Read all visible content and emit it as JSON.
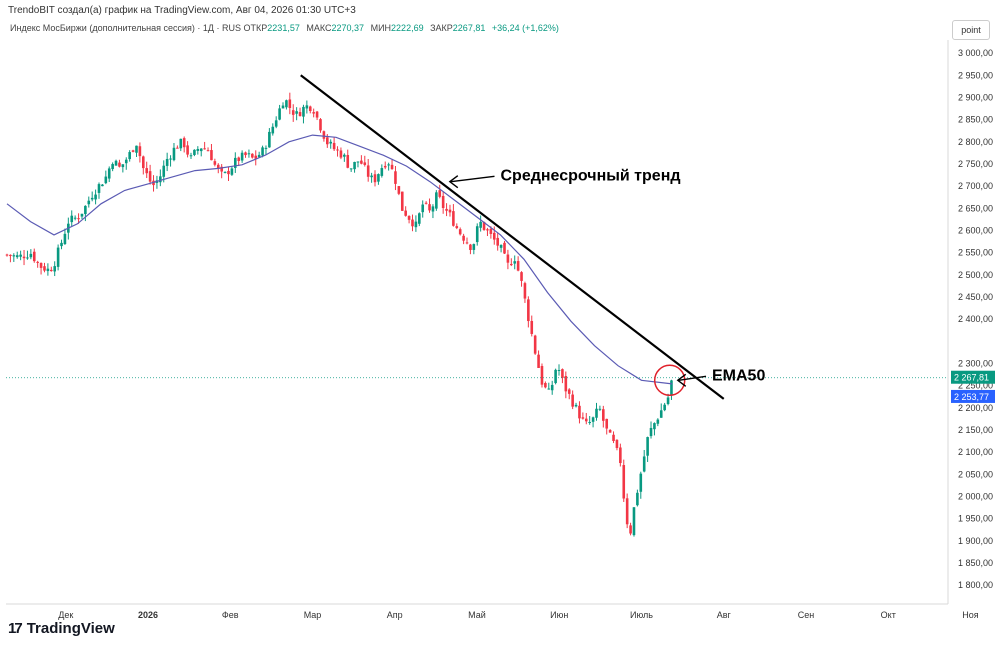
{
  "credit": "TrendoBIT создал(а) график на TradingView.com, Авг 04, 2026 01:30 UTC+3",
  "legend": {
    "symbol": "Индекс МосБиржи (дополнительная сессия) · 1Д · RUS",
    "open_label": "ОТКР",
    "open": "2231,57",
    "high_label": "МАКС",
    "high": "2270,37",
    "low_label": "МИН",
    "low": "2222,69",
    "close_label": "ЗАКР",
    "close": "2267,81",
    "change": "+36,24 (+1,62%)"
  },
  "scale_button": "point",
  "logo_text": "TradingView",
  "colors": {
    "up": "#089981",
    "down": "#f23645",
    "ema": "#5b5bb4",
    "trend": "#000000",
    "last_price": "#089981",
    "ema_badge": "#2962ff",
    "circle": "#e0202a"
  },
  "chart_data": {
    "type": "candlestick",
    "ylim": [
      1780,
      3025
    ],
    "y_ticks": [
      "3 000,00",
      "2 950,00",
      "2 900,00",
      "2 850,00",
      "2 800,00",
      "2 750,00",
      "2 700,00",
      "2 650,00",
      "2 600,00",
      "2 550,00",
      "2 500,00",
      "2 450,00",
      "2 400,00",
      "2 300,00",
      "2 250,00",
      "2 200,00",
      "2 150,00",
      "2 100,00",
      "2 050,00",
      "2 000,00",
      "1 950,00",
      "1 900,00",
      "1 850,00",
      "1 800,00"
    ],
    "y_tick_values": [
      3000,
      2950,
      2900,
      2850,
      2800,
      2750,
      2700,
      2650,
      2600,
      2550,
      2500,
      2450,
      2400,
      2300,
      2250,
      2200,
      2150,
      2100,
      2050,
      2000,
      1950,
      1900,
      1850,
      1800
    ],
    "x_labels": [
      "ноя",
      "Дек",
      "2026",
      "Фев",
      "Мар",
      "Апр",
      "Май",
      "Июн",
      "Июль",
      "Авг",
      "Сен",
      "Окт",
      "Ноя"
    ],
    "x_label_days": [
      -14,
      25,
      60,
      95,
      130,
      165,
      200,
      235,
      270,
      305,
      340,
      375,
      410
    ],
    "last_price": {
      "label": "2 267,81",
      "value": 2267.81
    },
    "ema_value": {
      "label": "2 253,77",
      "value": 2253.77
    },
    "anchors": [
      [
        0,
        2545
      ],
      [
        5,
        2540
      ],
      [
        10,
        2550
      ],
      [
        14,
        2520
      ],
      [
        18,
        2510
      ],
      [
        20,
        2525
      ],
      [
        23,
        2570
      ],
      [
        26,
        2620
      ],
      [
        30,
        2630
      ],
      [
        33,
        2650
      ],
      [
        36,
        2680
      ],
      [
        39,
        2700
      ],
      [
        42,
        2720
      ],
      [
        45,
        2760
      ],
      [
        48,
        2740
      ],
      [
        52,
        2770
      ],
      [
        55,
        2800
      ],
      [
        58,
        2740
      ],
      [
        62,
        2700
      ],
      [
        65,
        2720
      ],
      [
        68,
        2760
      ],
      [
        72,
        2790
      ],
      [
        75,
        2800
      ],
      [
        78,
        2760
      ],
      [
        82,
        2790
      ],
      [
        86,
        2780
      ],
      [
        89,
        2740
      ],
      [
        92,
        2720
      ],
      [
        95,
        2740
      ],
      [
        98,
        2760
      ],
      [
        102,
        2770
      ],
      [
        105,
        2760
      ],
      [
        109,
        2780
      ],
      [
        112,
        2820
      ],
      [
        115,
        2860
      ],
      [
        118,
        2900
      ],
      [
        120,
        2880
      ],
      [
        123,
        2860
      ],
      [
        127,
        2880
      ],
      [
        130,
        2880
      ],
      [
        133,
        2840
      ],
      [
        136,
        2800
      ],
      [
        140,
        2780
      ],
      [
        143,
        2770
      ],
      [
        146,
        2740
      ],
      [
        150,
        2760
      ],
      [
        153,
        2730
      ],
      [
        156,
        2710
      ],
      [
        159,
        2740
      ],
      [
        162,
        2760
      ],
      [
        165,
        2720
      ],
      [
        168,
        2650
      ],
      [
        171,
        2630
      ],
      [
        174,
        2610
      ],
      [
        177,
        2660
      ],
      [
        180,
        2640
      ],
      [
        183,
        2680
      ],
      [
        186,
        2650
      ],
      [
        189,
        2630
      ],
      [
        192,
        2600
      ],
      [
        195,
        2580
      ],
      [
        198,
        2560
      ],
      [
        201,
        2620
      ],
      [
        204,
        2600
      ],
      [
        207,
        2580
      ],
      [
        210,
        2560
      ],
      [
        213,
        2520
      ],
      [
        216,
        2540
      ],
      [
        219,
        2480
      ],
      [
        222,
        2400
      ],
      [
        225,
        2320
      ],
      [
        228,
        2250
      ],
      [
        231,
        2230
      ],
      [
        234,
        2300
      ],
      [
        237,
        2250
      ],
      [
        240,
        2220
      ],
      [
        243,
        2190
      ],
      [
        246,
        2160
      ],
      [
        249,
        2170
      ],
      [
        252,
        2200
      ],
      [
        255,
        2150
      ],
      [
        258,
        2120
      ],
      [
        261,
        2080
      ],
      [
        263,
        1970
      ],
      [
        265,
        1910
      ],
      [
        267,
        1980
      ],
      [
        270,
        2060
      ],
      [
        273,
        2140
      ],
      [
        276,
        2170
      ],
      [
        279,
        2200
      ],
      [
        282,
        2231
      ],
      [
        283,
        2267.81
      ]
    ],
    "ema50": [
      [
        0,
        2660
      ],
      [
        10,
        2620
      ],
      [
        20,
        2590
      ],
      [
        30,
        2615
      ],
      [
        40,
        2660
      ],
      [
        50,
        2690
      ],
      [
        60,
        2705
      ],
      [
        70,
        2720
      ],
      [
        80,
        2735
      ],
      [
        90,
        2740
      ],
      [
        100,
        2748
      ],
      [
        110,
        2770
      ],
      [
        120,
        2800
      ],
      [
        130,
        2815
      ],
      [
        140,
        2810
      ],
      [
        150,
        2790
      ],
      [
        160,
        2770
      ],
      [
        170,
        2745
      ],
      [
        180,
        2710
      ],
      [
        190,
        2670
      ],
      [
        200,
        2630
      ],
      [
        210,
        2590
      ],
      [
        220,
        2535
      ],
      [
        230,
        2460
      ],
      [
        240,
        2395
      ],
      [
        250,
        2340
      ],
      [
        260,
        2295
      ],
      [
        270,
        2262
      ],
      [
        283,
        2253.77
      ]
    ],
    "trendline": [
      [
        125,
        2950
      ],
      [
        305,
        2220
      ]
    ],
    "annotations": [
      {
        "text": "Среднесрочный тренд",
        "arrow_to": [
          188,
          2710
        ],
        "label_at": [
          210,
          2713
        ]
      },
      {
        "text": "EMA50",
        "arrow_to": [
          285,
          2262
        ],
        "label_at": [
          300,
          2262
        ]
      }
    ]
  }
}
